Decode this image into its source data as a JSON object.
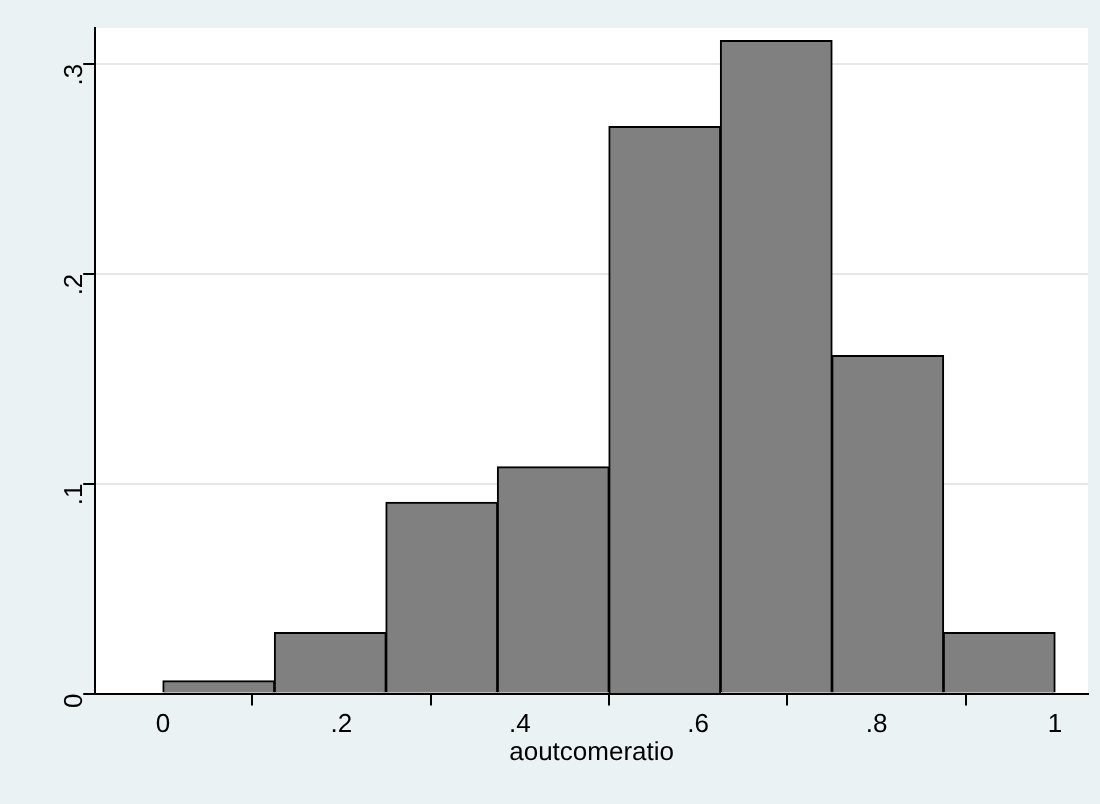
{
  "chart_data": {
    "type": "histogram",
    "xlabel": "aoutcomeratio",
    "bins": [
      0,
      0.125,
      0.25,
      0.375,
      0.5,
      0.625,
      0.75,
      0.875,
      1
    ],
    "values": [
      0.006,
      0.029,
      0.091,
      0.108,
      0.27,
      0.311,
      0.161,
      0.029
    ],
    "color": "#808080",
    "xlim": [
      -0.076,
      1.037
    ],
    "ylim": [
      0,
      0.317
    ],
    "xticks": [
      0,
      {
        "value": 0.2,
        "label": ".2"
      },
      {
        "value": 0.4,
        "label": ".4"
      },
      {
        "value": 0.6,
        "label": ".6"
      },
      {
        "value": 0.8,
        "label": ".8"
      },
      1
    ],
    "yticks": [
      0,
      {
        "value": 0.1,
        "label": ".1"
      },
      {
        "value": 0.2,
        "label": ".2"
      },
      {
        "value": 0.3,
        "label": ".3"
      }
    ],
    "grid": "y",
    "legend": false
  }
}
